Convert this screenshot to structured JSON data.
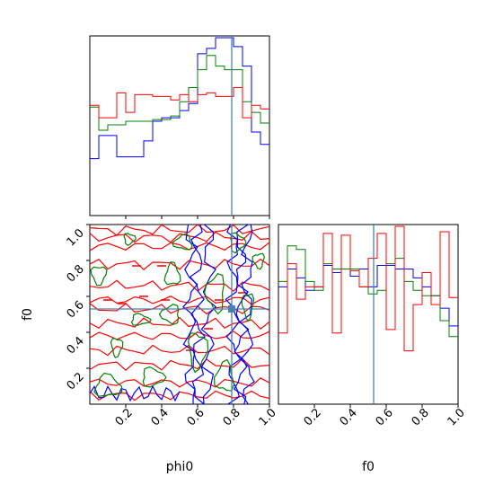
{
  "chart_data": {
    "type": "corner",
    "parameters": [
      "phi0",
      "f0"
    ],
    "xlabels": [
      "phi0",
      "f0"
    ],
    "ylabels": [
      "",
      "f0"
    ],
    "tick_labels": [
      "0.2",
      "0.4",
      "0.6",
      "0.8",
      "1.0"
    ],
    "tick_values": [
      0.2,
      0.4,
      0.6,
      0.8,
      1.0
    ],
    "xlim": [
      0,
      1
    ],
    "ylim": [
      0,
      1
    ],
    "truth": {
      "phi0": 0.79,
      "f0": 0.53
    },
    "truth_color": "#4682b4",
    "series_colors": {
      "blue": "#0000ff",
      "green": "#008000",
      "red": "#ff0000"
    },
    "histograms": {
      "phi0": {
        "bin_edges": [
          0,
          0.05,
          0.1,
          0.15,
          0.2,
          0.25,
          0.3,
          0.35,
          0.4,
          0.45,
          0.5,
          0.55,
          0.6,
          0.65,
          0.7,
          0.75,
          0.8,
          0.85,
          0.9,
          0.95,
          1.0
        ],
        "series": [
          {
            "color": "blue",
            "values": [
              0.32,
              0.45,
              0.45,
              0.33,
              0.33,
              0.33,
              0.42,
              0.53,
              0.55,
              0.55,
              0.59,
              0.63,
              0.91,
              0.94,
              1.0,
              1.0,
              0.95,
              0.84,
              0.47,
              0.4
            ]
          },
          {
            "color": "green",
            "values": [
              0.61,
              0.48,
              0.51,
              0.51,
              0.53,
              0.53,
              0.53,
              0.54,
              0.54,
              0.56,
              0.64,
              0.72,
              0.82,
              0.9,
              0.84,
              0.82,
              0.82,
              0.64,
              0.58,
              0.52
            ]
          },
          {
            "color": "red",
            "values": [
              0.62,
              0.55,
              0.55,
              0.69,
              0.58,
              0.68,
              0.68,
              0.67,
              0.67,
              0.65,
              0.68,
              0.64,
              0.68,
              0.69,
              0.67,
              0.67,
              0.72,
              0.55,
              0.62,
              0.6
            ]
          }
        ]
      },
      "f0": {
        "bin_edges": [
          0,
          0.05,
          0.1,
          0.15,
          0.2,
          0.25,
          0.3,
          0.35,
          0.4,
          0.45,
          0.5,
          0.55,
          0.6,
          0.65,
          0.7,
          0.75,
          0.8,
          0.85,
          0.9,
          0.95,
          1.0
        ],
        "series": [
          {
            "color": "blue",
            "values": [
              0.66,
              0.76,
              0.71,
              0.64,
              0.66,
              0.78,
              0.74,
              0.76,
              0.72,
              0.76,
              0.66,
              0.78,
              0.78,
              0.76,
              0.76,
              0.71,
              0.66,
              0.61,
              0.54,
              0.44
            ]
          },
          {
            "color": "green",
            "values": [
              0.69,
              0.89,
              0.87,
              0.69,
              0.64,
              0.79,
              0.76,
              0.76,
              0.76,
              0.66,
              0.62,
              0.64,
              0.79,
              0.82,
              0.69,
              0.64,
              0.61,
              0.61,
              0.47,
              0.38
            ]
          },
          {
            "color": "red",
            "values": [
              0.4,
              0.79,
              0.59,
              0.66,
              0.66,
              0.96,
              0.4,
              0.95,
              0.75,
              0.66,
              0.82,
              0.96,
              0.42,
              1.0,
              0.3,
              0.56,
              0.74,
              0.56,
              0.97,
              0.6
            ]
          }
        ]
      }
    },
    "contours_2d": {
      "x": "phi0",
      "y": "f0",
      "series": [
        {
          "color": "blue",
          "note": "vertical band ridge near phi0 0.55-0.8"
        },
        {
          "color": "green",
          "note": "scattered small contours"
        },
        {
          "color": "red",
          "note": "horizontal stripe contours"
        }
      ]
    }
  }
}
